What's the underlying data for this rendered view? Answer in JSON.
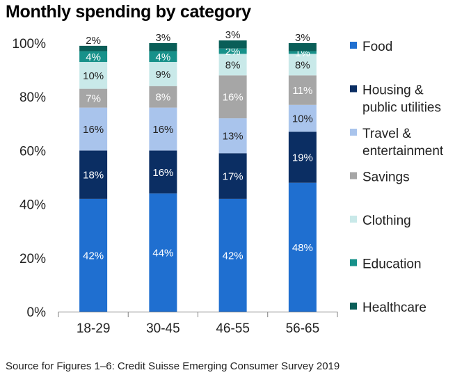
{
  "title": "Monthly spending by category",
  "source": "Source for Figures 1–6: Credit Suisse Emerging Consumer Survey 2019",
  "chart_data": {
    "type": "bar",
    "stacked": true,
    "title": "Monthly spending by category",
    "xlabel": "",
    "ylabel": "",
    "ylim": [
      0,
      100
    ],
    "yticks": [
      "0%",
      "20%",
      "40%",
      "60%",
      "80%",
      "100%"
    ],
    "categories": [
      "18-29",
      "30-45",
      "46-55",
      "56-65"
    ],
    "grid": false,
    "legend_position": "right",
    "series": [
      {
        "name": "Food",
        "color": "#1F6FD0",
        "label_color": "#ffffff",
        "values": [
          42,
          44,
          42,
          48
        ],
        "labels": [
          "42%",
          "44%",
          "42%",
          "48%"
        ]
      },
      {
        "name": "Housing & public utilities",
        "legend_lines": [
          "Housing &",
          "public utilities"
        ],
        "color": "#0B2E63",
        "label_color": "#ffffff",
        "values": [
          18,
          16,
          17,
          19
        ],
        "labels": [
          "18%",
          "16%",
          "17%",
          "19%"
        ]
      },
      {
        "name": "Travel & entertainment",
        "legend_lines": [
          "Travel &",
          "entertainment"
        ],
        "color": "#A9C4EC",
        "label_color": "#222222",
        "values": [
          16,
          16,
          13,
          10
        ],
        "labels": [
          "16%",
          "16%",
          "13%",
          "10%"
        ]
      },
      {
        "name": "Savings",
        "color": "#A6A6A6",
        "label_color": "#ffffff",
        "values": [
          7,
          8,
          16,
          11
        ],
        "labels": [
          "7%",
          "8%",
          "16%",
          "11%"
        ]
      },
      {
        "name": "Clothing",
        "color": "#C9E9E9",
        "label_color": "#222222",
        "values": [
          10,
          9,
          8,
          8
        ],
        "labels": [
          "10%",
          "9%",
          "8%",
          "8%"
        ]
      },
      {
        "name": "Education",
        "color": "#17918A",
        "label_color": "#ffffff",
        "values": [
          4,
          4,
          2,
          1
        ],
        "labels": [
          "4%",
          "4%",
          "2%",
          "1%"
        ]
      },
      {
        "name": "Healthcare",
        "color": "#0A5E58",
        "label_color": "#222222",
        "values": [
          2,
          3,
          3,
          3
        ],
        "labels": [
          "2%",
          "3%",
          "3%",
          "3%"
        ]
      }
    ]
  }
}
